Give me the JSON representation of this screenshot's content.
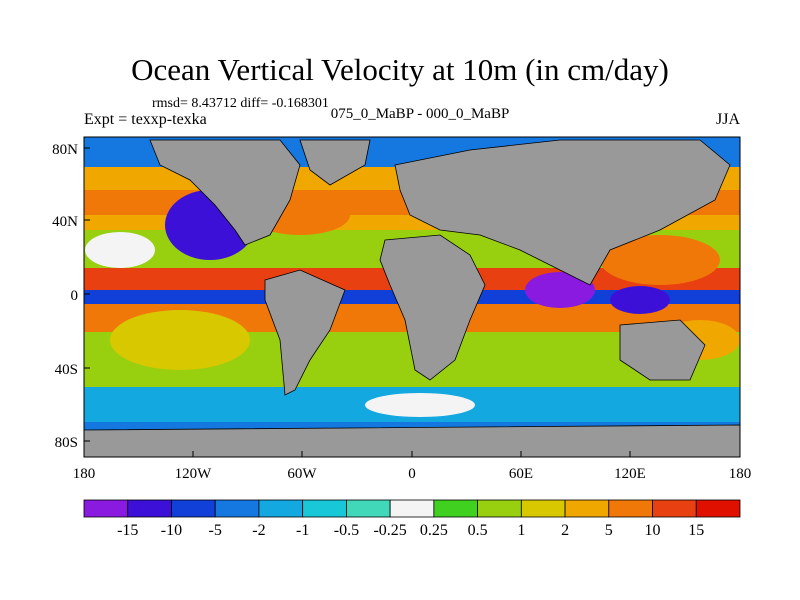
{
  "title": "Ocean Vertical Velocity at 10m (in cm/day)",
  "stats_line": "rmsd= 8.43712 diff= -0.168301",
  "experiment_label": "Expt = texxp-texka",
  "comparison_label": "075_0_MaBP - 000_0_MaBP",
  "season_label": "JJA",
  "y_axis": {
    "ticks": [
      "80N",
      "40N",
      "0",
      "40S",
      "80S"
    ]
  },
  "x_axis": {
    "ticks": [
      "180",
      "120W",
      "60W",
      "0",
      "60E",
      "120E",
      "180"
    ]
  },
  "colorbar": {
    "levels": [
      "-15",
      "-10",
      "-5",
      "-2",
      "-1",
      "-0.5",
      "-0.25",
      "0.25",
      "0.5",
      "1",
      "2",
      "5",
      "10",
      "15"
    ],
    "colors": [
      "#8a1ae0",
      "#3d10d8",
      "#1040d8",
      "#1478e0",
      "#14a8e0",
      "#18c8d8",
      "#40d8b8",
      "#f4f4f4",
      "#40d020",
      "#98d010",
      "#d8c800",
      "#f0a800",
      "#f07808",
      "#e84010",
      "#e01000"
    ]
  },
  "colors": {
    "land": "#999999",
    "coastline": "#000000"
  }
}
